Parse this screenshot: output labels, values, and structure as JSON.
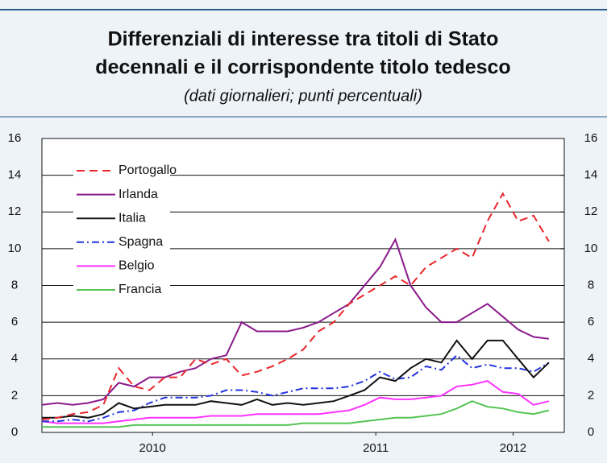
{
  "chart_data": {
    "type": "line",
    "title": [
      "Differenziali di interesse tra titoli di Stato",
      "decennali e il corrispondente titolo tedesco"
    ],
    "subtitle": "(dati giornalieri; punti percentuali)",
    "x": [
      2009.75,
      2009.825,
      2009.9,
      2009.975,
      2010.05,
      2010.125,
      2010.2,
      2010.275,
      2010.35,
      2010.425,
      2010.5,
      2010.575,
      2010.65,
      2010.725,
      2010.8,
      2010.875,
      2010.95,
      2011.025,
      2011.1,
      2011.175,
      2011.25,
      2011.325,
      2011.4,
      2011.475,
      2011.55,
      2011.625,
      2011.7,
      2011.775,
      2011.85,
      2011.925,
      2012.0,
      2012.075,
      2012.15,
      2012.225
    ],
    "series": [
      {
        "name": "Portogallo",
        "color": "#e8262b",
        "style": "dashed",
        "values": [
          0.7,
          0.8,
          1.0,
          1.1,
          1.5,
          3.5,
          2.5,
          2.3,
          3.0,
          3.0,
          4.0,
          3.7,
          4.0,
          3.1,
          3.3,
          3.6,
          4.0,
          4.5,
          5.5,
          6.0,
          7.0,
          7.5,
          8.0,
          8.5,
          8.0,
          9.0,
          9.5,
          10.0,
          9.5,
          11.5,
          13.0,
          11.5,
          11.8,
          10.4
        ]
      },
      {
        "name": "Irlanda",
        "color": "#8b1a8b",
        "style": "solid",
        "values": [
          1.5,
          1.6,
          1.5,
          1.6,
          1.8,
          2.7,
          2.5,
          3.0,
          3.0,
          3.3,
          3.5,
          4.0,
          4.2,
          6.0,
          5.5,
          5.5,
          5.5,
          5.7,
          6.0,
          6.5,
          7.0,
          8.0,
          9.0,
          10.5,
          8.0,
          6.8,
          6.0,
          6.0,
          6.5,
          7.0,
          6.3,
          5.6,
          5.2,
          5.1
        ]
      },
      {
        "name": "Italia",
        "color": "#111111",
        "style": "solid",
        "values": [
          0.8,
          0.8,
          0.9,
          0.8,
          1.0,
          1.6,
          1.3,
          1.4,
          1.5,
          1.5,
          1.5,
          1.7,
          1.6,
          1.5,
          1.8,
          1.5,
          1.6,
          1.5,
          1.6,
          1.7,
          2.0,
          2.3,
          3.0,
          2.8,
          3.5,
          4.0,
          3.8,
          5.0,
          4.0,
          5.0,
          5.0,
          4.0,
          3.0,
          3.8
        ]
      },
      {
        "name": "Spagna",
        "color": "#2233dd",
        "style": "dashdot",
        "values": [
          0.6,
          0.6,
          0.7,
          0.6,
          0.8,
          1.1,
          1.2,
          1.6,
          1.9,
          1.9,
          1.9,
          2.0,
          2.3,
          2.3,
          2.2,
          2.0,
          2.2,
          2.4,
          2.4,
          2.4,
          2.5,
          2.8,
          3.3,
          2.9,
          3.0,
          3.6,
          3.4,
          4.2,
          3.5,
          3.7,
          3.5,
          3.5,
          3.3,
          3.8
        ]
      },
      {
        "name": "Belgio",
        "color": "#ff33ff",
        "style": "solid",
        "values": [
          0.6,
          0.5,
          0.5,
          0.5,
          0.5,
          0.6,
          0.7,
          0.8,
          0.8,
          0.8,
          0.8,
          0.9,
          0.9,
          0.9,
          1.0,
          1.0,
          1.0,
          1.0,
          1.0,
          1.1,
          1.2,
          1.5,
          1.9,
          1.8,
          1.8,
          1.9,
          2.0,
          2.5,
          2.6,
          2.8,
          2.2,
          2.1,
          1.5,
          1.7
        ]
      },
      {
        "name": "Francia",
        "color": "#55c455",
        "style": "solid",
        "values": [
          0.3,
          0.3,
          0.3,
          0.3,
          0.3,
          0.3,
          0.4,
          0.4,
          0.4,
          0.4,
          0.4,
          0.4,
          0.4,
          0.4,
          0.4,
          0.4,
          0.4,
          0.5,
          0.5,
          0.5,
          0.5,
          0.6,
          0.7,
          0.8,
          0.8,
          0.9,
          1.0,
          1.3,
          1.7,
          1.4,
          1.3,
          1.1,
          1.0,
          1.2
        ]
      }
    ],
    "xlim": [
      2009.75,
      2012.3
    ],
    "xticks": [
      {
        "value": 2010.29,
        "label": "2010"
      },
      {
        "value": 2011.38,
        "label": "2011"
      },
      {
        "value": 2012.05,
        "label": "2012"
      }
    ],
    "ylim": [
      0,
      16
    ],
    "yticks": [
      0,
      2,
      4,
      6,
      8,
      10,
      12,
      14,
      16
    ],
    "y2lim": [
      0,
      16
    ],
    "y2ticks": [
      0,
      2,
      4,
      6,
      8,
      10,
      12,
      14,
      16
    ],
    "grid": true,
    "legend": "upper left"
  }
}
